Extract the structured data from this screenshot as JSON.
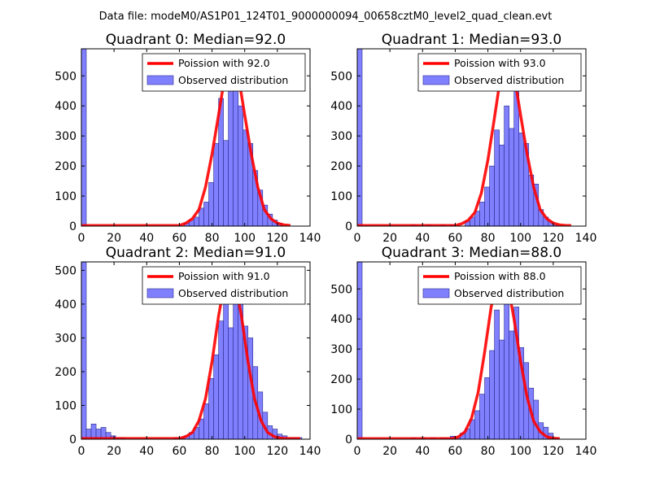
{
  "figure": {
    "suptitle": "Data file: modeM0/AS1P01_124T01_9000000094_00658cztM0_level2_quad_clean.evt"
  },
  "colors": {
    "hist_fill": "#8080ff",
    "hist_edge": "#2a2a8a",
    "poisson_line": "#ff0000",
    "axes": "#000000"
  },
  "chart_data": [
    {
      "type": "bar",
      "title": "Quadrant 0: Median=92.0",
      "xlim": [
        0,
        140
      ],
      "ylim": [
        0,
        590
      ],
      "xticks": [
        0,
        20,
        40,
        60,
        80,
        100,
        120,
        140
      ],
      "yticks": [
        0,
        100,
        200,
        300,
        400,
        500
      ],
      "bin_width": 3,
      "legend": {
        "line": "Poission with 92.0",
        "bars": "Observed distribution",
        "placement": "top-right"
      },
      "bars": [
        [
          0,
          590
        ],
        [
          63,
          10
        ],
        [
          66,
          20
        ],
        [
          69,
          30
        ],
        [
          72,
          60
        ],
        [
          75,
          80
        ],
        [
          78,
          145
        ],
        [
          81,
          275
        ],
        [
          84,
          425
        ],
        [
          87,
          285
        ],
        [
          90,
          555
        ],
        [
          93,
          450
        ],
        [
          96,
          400
        ],
        [
          99,
          320
        ],
        [
          102,
          275
        ],
        [
          105,
          185
        ],
        [
          108,
          120
        ],
        [
          111,
          70
        ],
        [
          114,
          40
        ],
        [
          117,
          20
        ],
        [
          120,
          10
        ]
      ],
      "poisson": {
        "mean": 92.0,
        "peak": 565,
        "x": [
          0,
          60,
          64,
          68,
          72,
          76,
          80,
          84,
          88,
          92,
          96,
          100,
          104,
          108,
          112,
          116,
          120,
          124,
          128
        ],
        "y": [
          2,
          2,
          10,
          25,
          55,
          130,
          240,
          370,
          505,
          565,
          505,
          370,
          240,
          130,
          55,
          25,
          10,
          4,
          2
        ]
      }
    },
    {
      "type": "bar",
      "title": "Quadrant 1: Median=93.0",
      "xlim": [
        0,
        140
      ],
      "ylim": [
        0,
        590
      ],
      "xticks": [
        0,
        20,
        40,
        60,
        80,
        100,
        120,
        140
      ],
      "yticks": [
        0,
        100,
        200,
        300,
        400,
        500
      ],
      "bin_width": 3,
      "legend": {
        "line": "Poission with 93.0",
        "bars": "Observed distribution",
        "placement": "top-right"
      },
      "bars": [
        [
          0,
          590
        ],
        [
          33,
          5
        ],
        [
          42,
          5
        ],
        [
          51,
          5
        ],
        [
          57,
          5
        ],
        [
          66,
          15
        ],
        [
          69,
          30
        ],
        [
          72,
          50
        ],
        [
          75,
          80
        ],
        [
          78,
          130
        ],
        [
          81,
          200
        ],
        [
          84,
          320
        ],
        [
          87,
          270
        ],
        [
          90,
          400
        ],
        [
          93,
          325
        ],
        [
          96,
          470
        ],
        [
          99,
          310
        ],
        [
          102,
          275
        ],
        [
          105,
          170
        ],
        [
          108,
          140
        ],
        [
          111,
          55
        ],
        [
          114,
          30
        ],
        [
          117,
          15
        ],
        [
          120,
          5
        ]
      ],
      "poisson": {
        "mean": 93.0,
        "peak": 565,
        "x": [
          0,
          60,
          64,
          68,
          72,
          76,
          80,
          84,
          88,
          92,
          96,
          100,
          104,
          108,
          112,
          116,
          120,
          124,
          128,
          131
        ],
        "y": [
          2,
          2,
          8,
          20,
          45,
          110,
          220,
          360,
          505,
          565,
          505,
          370,
          240,
          130,
          55,
          25,
          10,
          4,
          2,
          2
        ]
      }
    },
    {
      "type": "bar",
      "title": "Quadrant 2: Median=91.0",
      "xlim": [
        0,
        140
      ],
      "ylim": [
        0,
        525
      ],
      "xticks": [
        0,
        20,
        40,
        60,
        80,
        100,
        120,
        140
      ],
      "yticks": [
        0,
        100,
        200,
        300,
        400,
        500
      ],
      "bin_width": 3,
      "legend": {
        "line": "Poission with 91.0",
        "bars": "Observed distribution",
        "placement": "top-right"
      },
      "bars": [
        [
          0,
          525
        ],
        [
          3,
          30
        ],
        [
          6,
          45
        ],
        [
          9,
          30
        ],
        [
          12,
          35
        ],
        [
          15,
          20
        ],
        [
          18,
          10
        ],
        [
          21,
          5
        ],
        [
          24,
          5
        ],
        [
          57,
          5
        ],
        [
          60,
          5
        ],
        [
          63,
          10
        ],
        [
          66,
          20
        ],
        [
          69,
          35
        ],
        [
          72,
          60
        ],
        [
          75,
          105
        ],
        [
          78,
          180
        ],
        [
          81,
          250
        ],
        [
          84,
          350
        ],
        [
          87,
          420
        ],
        [
          90,
          330
        ],
        [
          93,
          435
        ],
        [
          96,
          420
        ],
        [
          99,
          335
        ],
        [
          102,
          300
        ],
        [
          105,
          215
        ],
        [
          108,
          140
        ],
        [
          111,
          80
        ],
        [
          114,
          40
        ],
        [
          117,
          30
        ],
        [
          120,
          15
        ],
        [
          123,
          10
        ],
        [
          126,
          5
        ],
        [
          129,
          5
        ],
        [
          132,
          5
        ]
      ],
      "poisson": {
        "mean": 91.0,
        "peak": 500,
        "x": [
          0,
          60,
          64,
          68,
          72,
          76,
          80,
          84,
          88,
          91,
          94,
          98,
          102,
          106,
          110,
          114,
          118,
          122,
          126,
          130,
          134
        ],
        "y": [
          2,
          2,
          8,
          20,
          55,
          120,
          230,
          365,
          470,
          500,
          470,
          365,
          230,
          120,
          55,
          20,
          8,
          3,
          2,
          2,
          2
        ]
      }
    },
    {
      "type": "bar",
      "title": "Quadrant 3: Median=88.0",
      "xlim": [
        0,
        140
      ],
      "ylim": [
        0,
        590
      ],
      "xticks": [
        0,
        20,
        40,
        60,
        80,
        100,
        120,
        140
      ],
      "yticks": [
        0,
        100,
        200,
        300,
        400,
        500
      ],
      "bin_width": 3,
      "legend": {
        "line": "Poission with 88.0",
        "bars": "Observed distribution",
        "placement": "top-right"
      },
      "bars": [
        [
          0,
          590
        ],
        [
          33,
          5
        ],
        [
          39,
          5
        ],
        [
          45,
          5
        ],
        [
          51,
          5
        ],
        [
          54,
          5
        ],
        [
          57,
          10
        ],
        [
          60,
          5
        ],
        [
          63,
          20
        ],
        [
          66,
          35
        ],
        [
          69,
          65
        ],
        [
          72,
          95
        ],
        [
          75,
          150
        ],
        [
          78,
          205
        ],
        [
          81,
          295
        ],
        [
          84,
          430
        ],
        [
          87,
          330
        ],
        [
          90,
          555
        ],
        [
          93,
          360
        ],
        [
          96,
          440
        ],
        [
          99,
          305
        ],
        [
          102,
          255
        ],
        [
          105,
          170
        ],
        [
          108,
          130
        ],
        [
          111,
          55
        ],
        [
          114,
          40
        ],
        [
          117,
          20
        ],
        [
          120,
          5
        ]
      ],
      "poisson": {
        "mean": 88.0,
        "peak": 565,
        "x": [
          0,
          58,
          62,
          66,
          70,
          74,
          78,
          82,
          86,
          88,
          92,
          96,
          100,
          104,
          108,
          112,
          116,
          120,
          124
        ],
        "y": [
          2,
          2,
          8,
          25,
          70,
          155,
          290,
          440,
          540,
          565,
          520,
          400,
          260,
          140,
          60,
          25,
          8,
          3,
          2
        ]
      }
    }
  ]
}
